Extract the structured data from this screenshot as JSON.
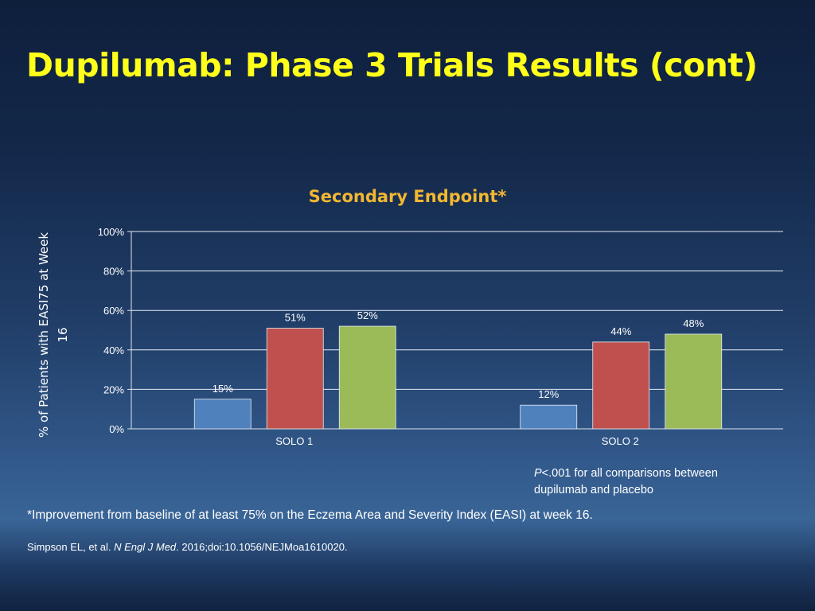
{
  "slide": {
    "title": "Dupilumab: Phase 3 Trials Results (cont)"
  },
  "chart_data": {
    "type": "bar",
    "title": "Secondary Endpoint*",
    "xlabel": "",
    "ylabel": "% of Patients with EASI75 at Week 16",
    "ylabel_lines": [
      "% of Patients with EASI75 at Week",
      "16"
    ],
    "ylim": [
      0,
      100
    ],
    "yticks": [
      0,
      20,
      40,
      60,
      80,
      100
    ],
    "ytick_labels": [
      "0%",
      "20%",
      "40%",
      "60%",
      "80%",
      "100%"
    ],
    "grid": true,
    "legend": "none",
    "categories": [
      "SOLO 1",
      "SOLO 2"
    ],
    "series": [
      {
        "values": [
          15,
          12
        ],
        "labels": [
          "15%",
          "12%"
        ],
        "color": "#4f81bd"
      },
      {
        "values": [
          51,
          44
        ],
        "labels": [
          "51%",
          "44%"
        ],
        "color": "#c0504d"
      },
      {
        "values": [
          52,
          48
        ],
        "labels": [
          "52%",
          "48%"
        ],
        "color": "#9bbb59"
      }
    ]
  },
  "note": {
    "p_label": "P",
    "text": "<.001 for all comparisons between dupilumab and placebo"
  },
  "footnote": {
    "text": "*Improvement from baseline of at least 75% on the Eczema Area and Severity Index (EASI) at week 16."
  },
  "citation": {
    "authors": "Simpson EL, et al. ",
    "journal": "N Engl J Med",
    "rest": ". 2016;doi:10.1056/NEJMoa1610020."
  }
}
